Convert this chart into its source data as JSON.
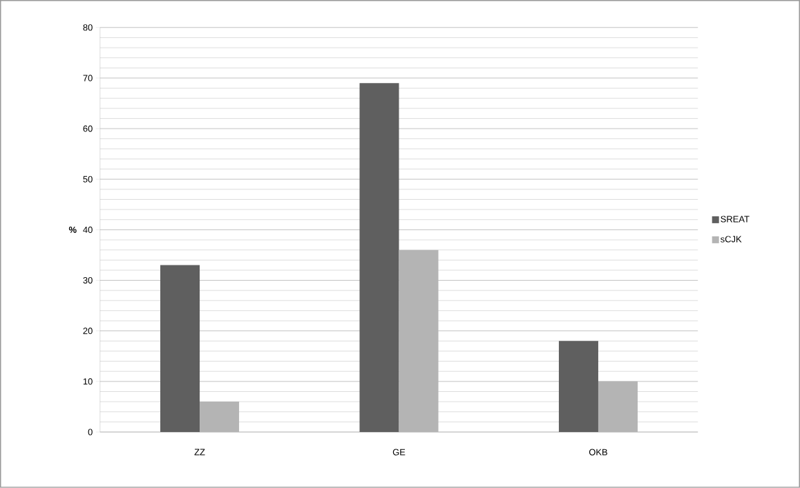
{
  "chart_data": {
    "type": "bar",
    "ylabel": "%",
    "categories": [
      "ZZ",
      "GE",
      "OKB"
    ],
    "series": [
      {
        "name": "SREAT",
        "color": "#5f5f5f",
        "values": [
          33,
          69,
          18
        ]
      },
      {
        "name": "sCJK",
        "color": "#b4b4b4",
        "values": [
          6,
          36,
          10
        ]
      }
    ],
    "ylim": [
      0,
      80
    ],
    "yticks": [
      0,
      10,
      20,
      30,
      40,
      50,
      60,
      70,
      80
    ],
    "grid": "y",
    "legend": "right"
  }
}
